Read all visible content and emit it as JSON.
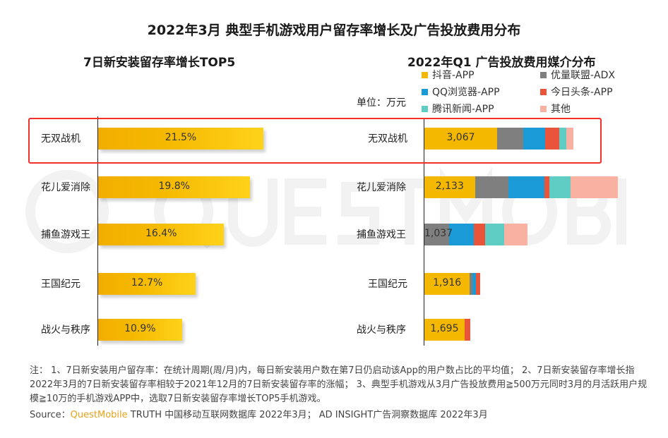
{
  "title": "2022年3月 典型手机游戏用户留存率增长及广告投放费用分布",
  "watermark": "QUESTMOBILE",
  "chart_data": [
    {
      "type": "bar",
      "orientation": "horizontal",
      "title": "7日新安装留存率增长TOP5",
      "categories": [
        "无双战机",
        "花儿爱消除",
        "捕鱼游戏王",
        "王国纪元",
        "战火与秩序"
      ],
      "values": [
        21.5,
        19.8,
        16.4,
        12.7,
        10.9
      ],
      "data_labels": [
        "21.5%",
        "19.8%",
        "16.4%",
        "12.7%",
        "10.9%"
      ],
      "unit": "%",
      "color": "#f5b800",
      "grid": false,
      "highlight": "无双战机"
    },
    {
      "type": "bar",
      "stacked": true,
      "orientation": "horizontal",
      "title": "2022年Q1 广告投放费用媒介分布",
      "unit_label": "单位：万元",
      "categories": [
        "无双战机",
        "花儿爱消除",
        "捕鱼游戏王",
        "王国纪元",
        "战火与秩序"
      ],
      "legend_position": "top",
      "series": [
        {
          "name": "抖音-APP",
          "color": "#f5b800",
          "values": [
            3067,
            2133,
            0,
            1916,
            1695
          ]
        },
        {
          "name": "优量联盟-ADX",
          "color": "#7f7f7f",
          "values": [
            1100,
            1400,
            1037,
            100,
            0
          ]
        },
        {
          "name": "QQ浏览器-APP",
          "color": "#1a9ad6",
          "values": [
            920,
            1530,
            1050,
            150,
            0
          ]
        },
        {
          "name": "今日头条-APP",
          "color": "#e8553a",
          "values": [
            600,
            210,
            480,
            180,
            240
          ]
        },
        {
          "name": "腾讯新闻-APP",
          "color": "#5fcdc4",
          "values": [
            300,
            900,
            810,
            0,
            0
          ]
        },
        {
          "name": "其他",
          "color": "#f9b2a2",
          "values": [
            300,
            1980,
            960,
            0,
            0
          ]
        }
      ],
      "data_labels": [
        "3,067",
        "2,133",
        "1,037",
        "1,916",
        "1,695"
      ],
      "grid": false,
      "highlight": "无双战机"
    }
  ],
  "note": "注： 1、7日新安装用户留存率：在统计周期(周/月)内，每日新安装用户数在第7日仍启动该App的用户数占比的平均值； 2、7日新安装留存率增长指2022年3月的7日新安装留存率相较于2021年12月的7日新安装留存率的涨幅； 3、典型手机游戏从3月广告投放费用≧500万元同时3月的月活跃用户规模≧10万的手机游戏APP中，选取7日新安装留存率增长TOP5手机游戏。",
  "source": {
    "prefix": "Source：",
    "brand": "QuestMobile",
    "text": " TRUTH 中国移动互联网数据库 2022年3月； AD INSIGHT广告洞察数据库 2022年3月"
  }
}
